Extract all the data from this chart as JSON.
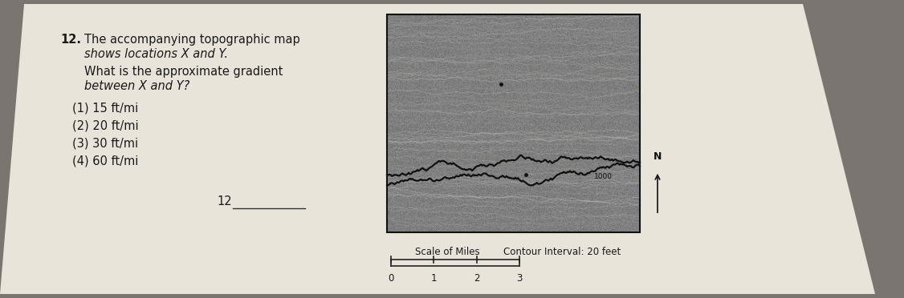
{
  "bg_color": "#7a7570",
  "paper_color": "#ddd9d0",
  "paper_color2": "#e8e4da",
  "q_number": "12.",
  "q_line1": "The accompanying topographic map",
  "q_line2": "shows locations X and Y.",
  "q_line3": "What is the approximate gradient",
  "q_line4": "between X and Y?",
  "choices": [
    "(1) 15 ft/mi",
    "(2) 20 ft/mi",
    "(3) 30 ft/mi",
    "(4) 60 ft/mi"
  ],
  "answer_label": "12",
  "scale_label": "Scale of Miles",
  "contour_label": "Contour Interval: 20 feet",
  "scale_ticks": [
    "0",
    "1",
    "2",
    "3"
  ],
  "north_label": "N",
  "map_color": "#5a5a52",
  "map_edge": "#111111",
  "contour_text": "1000"
}
